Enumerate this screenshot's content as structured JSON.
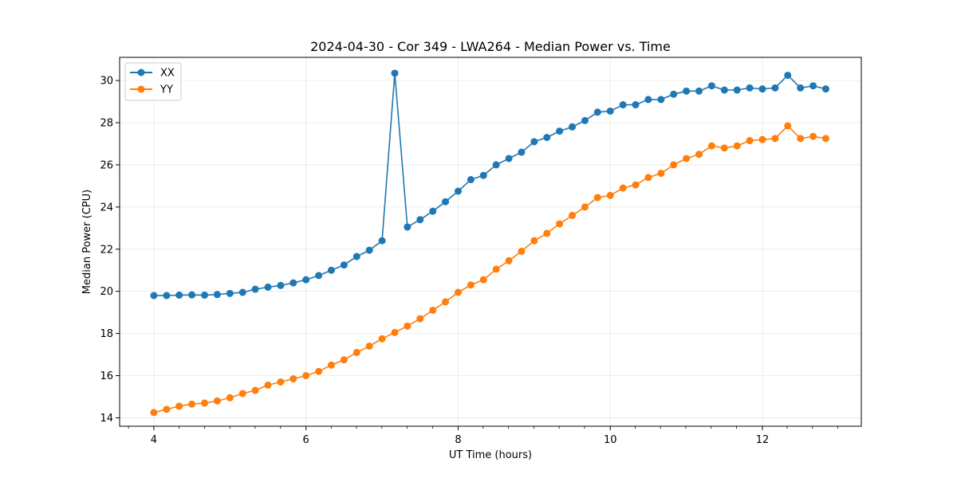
{
  "chart_data": {
    "type": "line",
    "title": "2024-04-30 - Cor 349 - LWA264 - Median Power vs. Time",
    "xlabel": "UT Time (hours)",
    "ylabel": "Median Power (CPU)",
    "xlim": [
      3.55,
      13.3
    ],
    "ylim": [
      13.6,
      31.1
    ],
    "xticks": [
      4,
      6,
      8,
      10,
      12
    ],
    "xticks_minor_step": 0.333,
    "yticks": [
      14,
      16,
      18,
      20,
      22,
      24,
      26,
      28,
      30
    ],
    "grid": true,
    "legend_position": "top-left",
    "x": [
      4.0,
      4.167,
      4.333,
      4.5,
      4.667,
      4.833,
      5.0,
      5.167,
      5.333,
      5.5,
      5.667,
      5.833,
      6.0,
      6.167,
      6.333,
      6.5,
      6.667,
      6.833,
      7.0,
      7.167,
      7.333,
      7.5,
      7.667,
      7.833,
      8.0,
      8.167,
      8.333,
      8.5,
      8.667,
      8.833,
      9.0,
      9.167,
      9.333,
      9.5,
      9.667,
      9.833,
      10.0,
      10.167,
      10.333,
      10.5,
      10.667,
      10.833,
      11.0,
      11.167,
      11.333,
      11.5,
      11.667,
      11.833,
      12.0,
      12.167,
      12.333,
      12.5,
      12.667,
      12.833
    ],
    "series": [
      {
        "name": "XX",
        "color": "#1f77b4",
        "values": [
          19.8,
          19.8,
          19.82,
          19.83,
          19.82,
          19.85,
          19.9,
          19.95,
          20.1,
          20.2,
          20.28,
          20.4,
          20.55,
          20.75,
          21.0,
          21.25,
          21.65,
          21.95,
          22.4,
          30.35,
          23.05,
          23.4,
          23.8,
          24.25,
          24.75,
          25.3,
          25.5,
          26.0,
          26.3,
          26.6,
          27.1,
          27.3,
          27.6,
          27.8,
          28.1,
          28.5,
          28.55,
          28.85,
          28.85,
          29.1,
          29.1,
          29.35,
          29.5,
          29.5,
          29.75,
          29.55,
          29.55,
          29.65,
          29.6,
          29.65,
          30.25,
          29.65,
          29.75,
          29.6
        ]
      },
      {
        "name": "YY",
        "color": "#ff7f0e",
        "values": [
          14.25,
          14.4,
          14.55,
          14.65,
          14.7,
          14.8,
          14.95,
          15.15,
          15.3,
          15.55,
          15.7,
          15.85,
          16.0,
          16.2,
          16.5,
          16.75,
          17.1,
          17.4,
          17.75,
          18.05,
          18.35,
          18.7,
          19.1,
          19.5,
          19.95,
          20.3,
          20.55,
          21.05,
          21.45,
          21.9,
          22.4,
          22.75,
          23.2,
          23.6,
          24.0,
          24.45,
          24.55,
          24.9,
          25.05,
          25.4,
          25.6,
          26.0,
          26.3,
          26.5,
          26.9,
          26.8,
          26.9,
          27.15,
          27.2,
          27.25,
          27.85,
          27.25,
          27.35,
          27.25
        ]
      }
    ]
  }
}
